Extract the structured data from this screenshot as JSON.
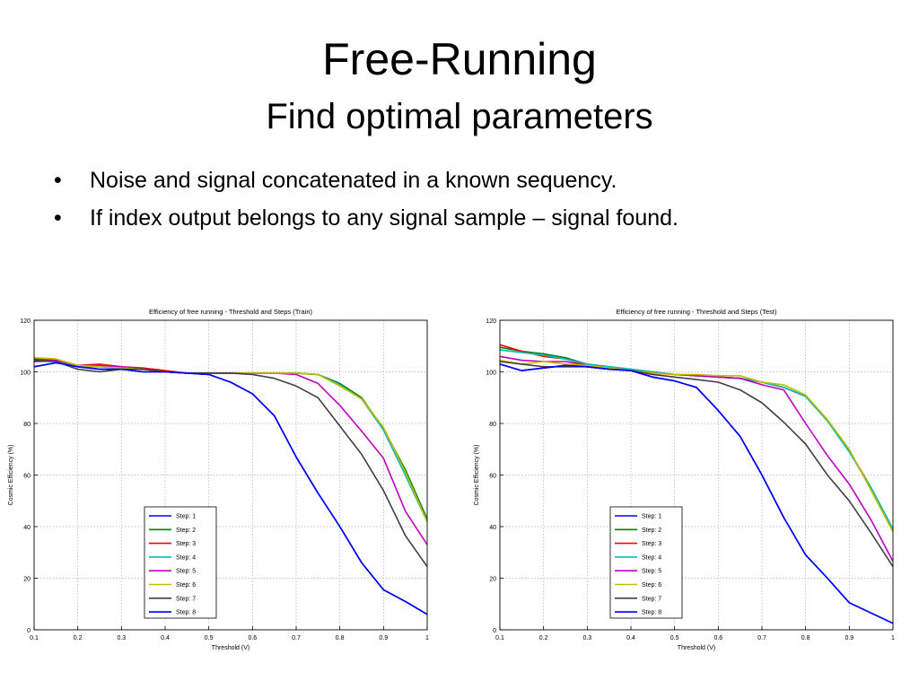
{
  "slide": {
    "title": "Free-Running",
    "subtitle": "Find optimal parameters",
    "bullets": [
      "Noise and signal concatenated in a known sequency.",
      "If index output belongs to any signal sample – signal found."
    ]
  },
  "chart_data": [
    {
      "type": "line",
      "title": "Efficiency of free running - Threshold and Steps (Train)",
      "xlabel": "Threshold (V)",
      "ylabel": "Cosmic Efficiency (%)",
      "xlim": [
        0.1,
        1
      ],
      "ylim": [
        0,
        120
      ],
      "xticks": [
        "0.1",
        "0.2",
        "0.3",
        "0.4",
        "0.5",
        "0.6",
        "0.7",
        "0.8",
        "0.9",
        "1"
      ],
      "yticks": [
        "0",
        "20",
        "40",
        "60",
        "80",
        "100",
        "120"
      ],
      "grid": true,
      "legend_position": "bottom-center",
      "x": [
        0.1,
        0.15,
        0.2,
        0.25,
        0.3,
        0.35,
        0.4,
        0.45,
        0.5,
        0.55,
        0.6,
        0.65,
        0.7,
        0.75,
        0.8,
        0.85,
        0.9,
        0.95,
        1.0
      ],
      "series": [
        {
          "name": "Step: 1",
          "color": "#0000ff",
          "values": [
            102,
            103.5,
            102,
            101,
            101,
            100,
            100,
            99.5,
            99,
            96,
            91.5,
            83,
            67,
            53,
            40,
            26,
            15.5,
            11,
            6
          ]
        },
        {
          "name": "Step: 2",
          "color": "#008000",
          "values": [
            105,
            104.5,
            102.5,
            102.5,
            102,
            101,
            100,
            99.5,
            99.5,
            99.5,
            99.5,
            99.5,
            99.5,
            99,
            95.5,
            90,
            78,
            62,
            43
          ]
        },
        {
          "name": "Step: 3",
          "color": "#ff0000",
          "values": [
            104.5,
            104.5,
            102.5,
            103,
            102,
            101.5,
            100.5,
            99.5,
            99.5,
            99.5,
            99.5,
            99.5,
            99.5,
            99,
            95,
            89.5,
            77.5,
            60,
            42
          ]
        },
        {
          "name": "Step: 4",
          "color": "#00bfbf",
          "values": [
            104,
            104,
            102,
            102,
            101.5,
            101,
            100,
            99.5,
            99.5,
            99.5,
            99.5,
            99.5,
            99.5,
            99,
            95,
            89.5,
            77.5,
            60,
            42
          ]
        },
        {
          "name": "Step: 5",
          "color": "#bf00bf",
          "values": [
            104,
            104.5,
            102.5,
            102.5,
            102,
            101,
            100,
            99.5,
            99.5,
            99.5,
            99.5,
            99.5,
            99,
            95.5,
            87,
            77,
            66.5,
            46,
            33
          ]
        },
        {
          "name": "Step: 6",
          "color": "#bfbf00",
          "values": [
            105.5,
            105,
            102.5,
            102,
            101.5,
            101,
            100,
            99.5,
            99.5,
            99.5,
            99.5,
            99.5,
            99.5,
            99,
            94.5,
            89.5,
            78.5,
            61,
            42
          ]
        },
        {
          "name": "Step: 7",
          "color": "#404040",
          "values": [
            104.5,
            104,
            101,
            100,
            101,
            101,
            100,
            99.5,
            99.5,
            99.5,
            99,
            97.5,
            94.5,
            90,
            79,
            68,
            54,
            36.5,
            24.5
          ]
        },
        {
          "name": "Step: 8",
          "color": "#0000ff",
          "values": [
            102,
            103.5,
            102,
            101,
            101,
            100,
            100,
            99.5,
            99,
            96,
            91.5,
            83,
            67,
            53,
            40,
            26,
            15.5,
            11,
            6
          ]
        }
      ]
    },
    {
      "type": "line",
      "title": "Efficiency of free running - Threshold and Steps (Test)",
      "xlabel": "Threshold (V)",
      "ylabel": "Cosmic Efficiency (%)",
      "xlim": [
        0.1,
        1
      ],
      "ylim": [
        0,
        120
      ],
      "xticks": [
        "0.1",
        "0.2",
        "0.3",
        "0.4",
        "0.5",
        "0.6",
        "0.7",
        "0.8",
        "0.9",
        "1"
      ],
      "yticks": [
        "0",
        "20",
        "40",
        "60",
        "80",
        "100",
        "120"
      ],
      "grid": true,
      "legend_position": "bottom-center",
      "x": [
        0.1,
        0.15,
        0.2,
        0.25,
        0.3,
        0.35,
        0.4,
        0.45,
        0.5,
        0.55,
        0.6,
        0.65,
        0.7,
        0.75,
        0.8,
        0.85,
        0.9,
        0.95,
        1.0
      ],
      "series": [
        {
          "name": "Step: 1",
          "color": "#0000ff",
          "values": [
            103,
            100.5,
            101.5,
            102.5,
            102,
            101,
            100.5,
            98,
            96.5,
            94,
            85,
            75,
            60,
            43.5,
            29,
            20,
            10.5,
            6.5,
            2.5
          ]
        },
        {
          "name": "Step: 2",
          "color": "#008000",
          "values": [
            109.5,
            108,
            107,
            105.5,
            103,
            102,
            101,
            100,
            99,
            98.5,
            98,
            97.5,
            96,
            94,
            90.5,
            81,
            69,
            55,
            39
          ]
        },
        {
          "name": "Step: 3",
          "color": "#ff0000",
          "values": [
            110.5,
            108,
            106,
            105,
            102.5,
            101.5,
            100.5,
            100,
            99,
            98.5,
            98,
            97.5,
            96,
            94,
            90.5,
            81,
            69.5,
            55,
            39
          ]
        },
        {
          "name": "Step: 4",
          "color": "#00bfbf",
          "values": [
            108.5,
            107.5,
            106.5,
            105,
            103,
            102,
            101,
            100,
            99,
            98.5,
            98,
            97.5,
            96,
            94,
            90.5,
            81,
            69,
            55,
            39
          ]
        },
        {
          "name": "Step: 5",
          "color": "#bf00bf",
          "values": [
            106,
            104.5,
            104,
            104,
            102.5,
            101.5,
            100.5,
            99.5,
            99,
            98.5,
            98,
            97.5,
            95,
            93,
            80,
            67.5,
            56.5,
            42.5,
            26.5
          ]
        },
        {
          "name": "Step: 6",
          "color": "#bfbf00",
          "values": [
            104.5,
            103,
            104,
            103,
            102.5,
            101.5,
            100.5,
            99.5,
            99,
            99,
            98.5,
            98.5,
            96,
            95,
            91,
            81.5,
            70,
            54,
            38
          ]
        },
        {
          "name": "Step: 7",
          "color": "#404040",
          "values": [
            104,
            103,
            102,
            102,
            102,
            101,
            100.5,
            99,
            98,
            97,
            96,
            93,
            88,
            80.5,
            72,
            60,
            50,
            37.5,
            24.5
          ]
        },
        {
          "name": "Step: 8",
          "color": "#0000ff",
          "values": [
            103,
            100.5,
            101.5,
            102.5,
            102,
            101,
            100.5,
            98,
            96.5,
            94,
            85,
            75,
            60,
            43.5,
            29,
            20,
            10.5,
            6.5,
            2.5
          ]
        }
      ]
    }
  ]
}
